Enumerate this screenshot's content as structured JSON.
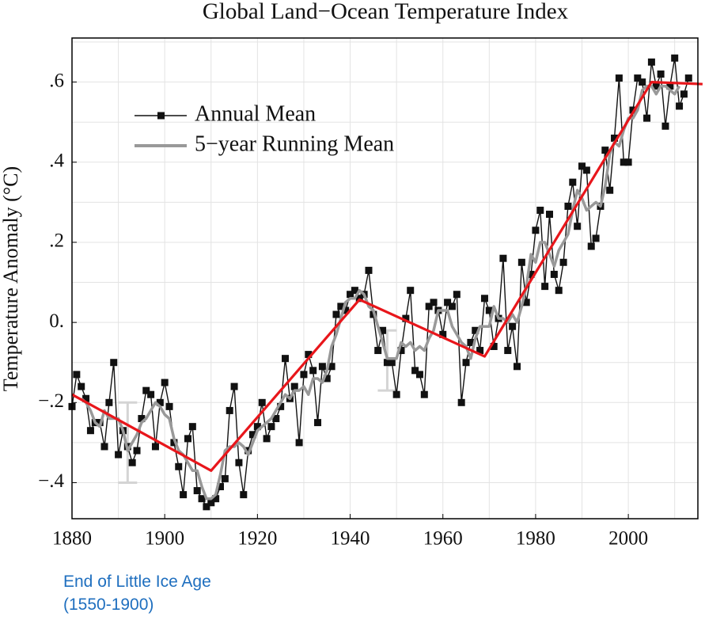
{
  "chart_data": {
    "type": "line",
    "title": "Global Land−Ocean Temperature Index",
    "y_label": "Temperature Anomaly (°C)",
    "annotation": "End of Little Ice Age (1550-1900)",
    "xlim": [
      1880,
      2015
    ],
    "ylim": [
      -0.49,
      0.71
    ],
    "xticks": [
      1880,
      1900,
      1920,
      1940,
      1960,
      1980,
      2000
    ],
    "x_minor_ticks": [
      1890,
      1910,
      1930,
      1950,
      1970,
      1990,
      2010
    ],
    "yticks": [
      {
        "value": -0.4,
        "label": "−.4"
      },
      {
        "value": -0.2,
        "label": "−.2"
      },
      {
        "value": 0,
        "label": "0."
      },
      {
        "value": 0.2,
        "label": ".2"
      },
      {
        "value": 0.4,
        "label": ".4"
      },
      {
        "value": 0.6,
        "label": ".6"
      }
    ],
    "y_minor_ticks": [
      -0.3,
      -0.1,
      0.1,
      0.3,
      0.5,
      0.7
    ],
    "grid": true,
    "legend": "upper left",
    "series": [
      {
        "name": "Annual Mean",
        "color": "#111111",
        "marker": "square",
        "x": [
          1880,
          1881,
          1882,
          1883,
          1884,
          1885,
          1886,
          1887,
          1888,
          1889,
          1890,
          1891,
          1892,
          1893,
          1894,
          1895,
          1896,
          1897,
          1898,
          1899,
          1900,
          1901,
          1902,
          1903,
          1904,
          1905,
          1906,
          1907,
          1908,
          1909,
          1910,
          1911,
          1912,
          1913,
          1914,
          1915,
          1916,
          1917,
          1918,
          1919,
          1920,
          1921,
          1922,
          1923,
          1924,
          1925,
          1926,
          1927,
          1928,
          1929,
          1930,
          1931,
          1932,
          1933,
          1934,
          1935,
          1936,
          1937,
          1938,
          1939,
          1940,
          1941,
          1942,
          1943,
          1944,
          1945,
          1946,
          1947,
          1948,
          1949,
          1950,
          1951,
          1952,
          1953,
          1954,
          1955,
          1956,
          1957,
          1958,
          1959,
          1960,
          1961,
          1962,
          1963,
          1964,
          1965,
          1966,
          1967,
          1968,
          1969,
          1970,
          1971,
          1972,
          1973,
          1974,
          1975,
          1976,
          1977,
          1978,
          1979,
          1980,
          1981,
          1982,
          1983,
          1984,
          1985,
          1986,
          1987,
          1988,
          1989,
          1990,
          1991,
          1992,
          1993,
          1994,
          1995,
          1996,
          1997,
          1998,
          1999,
          2000,
          2001,
          2002,
          2003,
          2004,
          2005,
          2006,
          2007,
          2008,
          2009,
          2010,
          2011,
          2012,
          2013
        ],
        "values": [
          -0.21,
          -0.13,
          -0.16,
          -0.19,
          -0.27,
          -0.25,
          -0.25,
          -0.31,
          -0.2,
          -0.1,
          -0.33,
          -0.27,
          -0.31,
          -0.35,
          -0.32,
          -0.24,
          -0.17,
          -0.18,
          -0.31,
          -0.2,
          -0.15,
          -0.21,
          -0.3,
          -0.36,
          -0.43,
          -0.29,
          -0.26,
          -0.42,
          -0.44,
          -0.46,
          -0.45,
          -0.44,
          -0.41,
          -0.39,
          -0.22,
          -0.16,
          -0.35,
          -0.43,
          -0.32,
          -0.28,
          -0.26,
          -0.2,
          -0.29,
          -0.26,
          -0.24,
          -0.21,
          -0.09,
          -0.19,
          -0.16,
          -0.3,
          -0.13,
          -0.08,
          -0.12,
          -0.25,
          -0.11,
          -0.14,
          -0.11,
          0.02,
          0.04,
          0.03,
          0.07,
          0.08,
          0.06,
          0.07,
          0.13,
          0.02,
          -0.07,
          -0.02,
          -0.1,
          -0.1,
          -0.18,
          -0.07,
          0.01,
          0.08,
          -0.12,
          -0.13,
          -0.18,
          0.04,
          0.05,
          0.03,
          -0.03,
          0.05,
          0.04,
          0.07,
          -0.2,
          -0.1,
          -0.05,
          -0.02,
          -0.07,
          0.06,
          0.03,
          -0.06,
          0.01,
          0.16,
          -0.07,
          -0.01,
          -0.11,
          0.15,
          0.05,
          0.12,
          0.23,
          0.28,
          0.09,
          0.27,
          0.12,
          0.08,
          0.15,
          0.29,
          0.35,
          0.24,
          0.39,
          0.38,
          0.19,
          0.21,
          0.29,
          0.43,
          0.33,
          0.46,
          0.61,
          0.4,
          0.4,
          0.53,
          0.61,
          0.6,
          0.51,
          0.65,
          0.59,
          0.62,
          0.49,
          0.59,
          0.66,
          0.54,
          0.57,
          0.61
        ]
      },
      {
        "name": "5−year Running Mean",
        "color": "#999999",
        "x": [
          1882,
          1883,
          1884,
          1885,
          1886,
          1887,
          1888,
          1889,
          1890,
          1891,
          1892,
          1893,
          1894,
          1895,
          1896,
          1897,
          1898,
          1899,
          1900,
          1901,
          1902,
          1903,
          1904,
          1905,
          1906,
          1907,
          1908,
          1909,
          1910,
          1911,
          1912,
          1913,
          1914,
          1915,
          1916,
          1917,
          1918,
          1919,
          1920,
          1921,
          1922,
          1923,
          1924,
          1925,
          1926,
          1927,
          1928,
          1929,
          1930,
          1931,
          1932,
          1933,
          1934,
          1935,
          1936,
          1937,
          1938,
          1939,
          1940,
          1941,
          1942,
          1943,
          1944,
          1945,
          1946,
          1947,
          1948,
          1949,
          1950,
          1951,
          1952,
          1953,
          1954,
          1955,
          1956,
          1957,
          1958,
          1959,
          1960,
          1961,
          1962,
          1963,
          1964,
          1965,
          1966,
          1967,
          1968,
          1969,
          1970,
          1971,
          1972,
          1973,
          1974,
          1975,
          1976,
          1977,
          1978,
          1979,
          1980,
          1981,
          1982,
          1983,
          1984,
          1985,
          1986,
          1987,
          1988,
          1989,
          1990,
          1991,
          1992,
          1993,
          1994,
          1995,
          1996,
          1997,
          1998,
          1999,
          2000,
          2001,
          2002,
          2003,
          2004,
          2005,
          2006,
          2007,
          2008,
          2009,
          2010,
          2011
        ],
        "values": [
          -0.19,
          -0.2,
          -0.22,
          -0.25,
          -0.26,
          -0.22,
          -0.24,
          -0.24,
          -0.24,
          -0.27,
          -0.32,
          -0.3,
          -0.28,
          -0.25,
          -0.24,
          -0.22,
          -0.2,
          -0.21,
          -0.23,
          -0.24,
          -0.29,
          -0.32,
          -0.33,
          -0.35,
          -0.37,
          -0.37,
          -0.41,
          -0.44,
          -0.44,
          -0.43,
          -0.38,
          -0.32,
          -0.31,
          -0.31,
          -0.3,
          -0.31,
          -0.33,
          -0.3,
          -0.27,
          -0.26,
          -0.25,
          -0.24,
          -0.22,
          -0.2,
          -0.18,
          -0.19,
          -0.17,
          -0.17,
          -0.16,
          -0.18,
          -0.14,
          -0.14,
          -0.15,
          -0.12,
          -0.06,
          -0.03,
          0.01,
          0.05,
          0.06,
          0.06,
          0.08,
          0.07,
          0.04,
          0.03,
          -0.01,
          -0.05,
          -0.09,
          -0.09,
          -0.09,
          -0.05,
          -0.06,
          -0.05,
          -0.07,
          -0.06,
          -0.07,
          -0.04,
          -0.02,
          0.03,
          0.03,
          0.03,
          -0.01,
          -0.03,
          -0.05,
          -0.06,
          -0.09,
          -0.04,
          -0.01,
          -0.01,
          -0.01,
          0.04,
          0.01,
          0.01,
          0,
          0.02,
          0,
          0.04,
          0.09,
          0.17,
          0.15,
          0.2,
          0.2,
          0.17,
          0.14,
          0.18,
          0.2,
          0.22,
          0.28,
          0.33,
          0.31,
          0.28,
          0.29,
          0.3,
          0.29,
          0.34,
          0.42,
          0.45,
          0.44,
          0.48,
          0.51,
          0.51,
          0.53,
          0.58,
          0.59,
          0.59,
          0.57,
          0.59,
          0.59,
          0.58,
          0.57,
          0.59
        ]
      }
    ],
    "trend": {
      "color": "#e8161b",
      "x": [
        1880,
        1910,
        1942,
        1969,
        2005,
        2016
      ],
      "values": [
        -0.18,
        -0.37,
        0.057,
        -0.085,
        0.6,
        0.595
      ]
    },
    "error_bars": {
      "color": "#d4d4d4",
      "x": [
        1892,
        1948
      ],
      "values": [
        -0.3,
        -0.095
      ],
      "errors": [
        0.1,
        0.075
      ]
    }
  }
}
